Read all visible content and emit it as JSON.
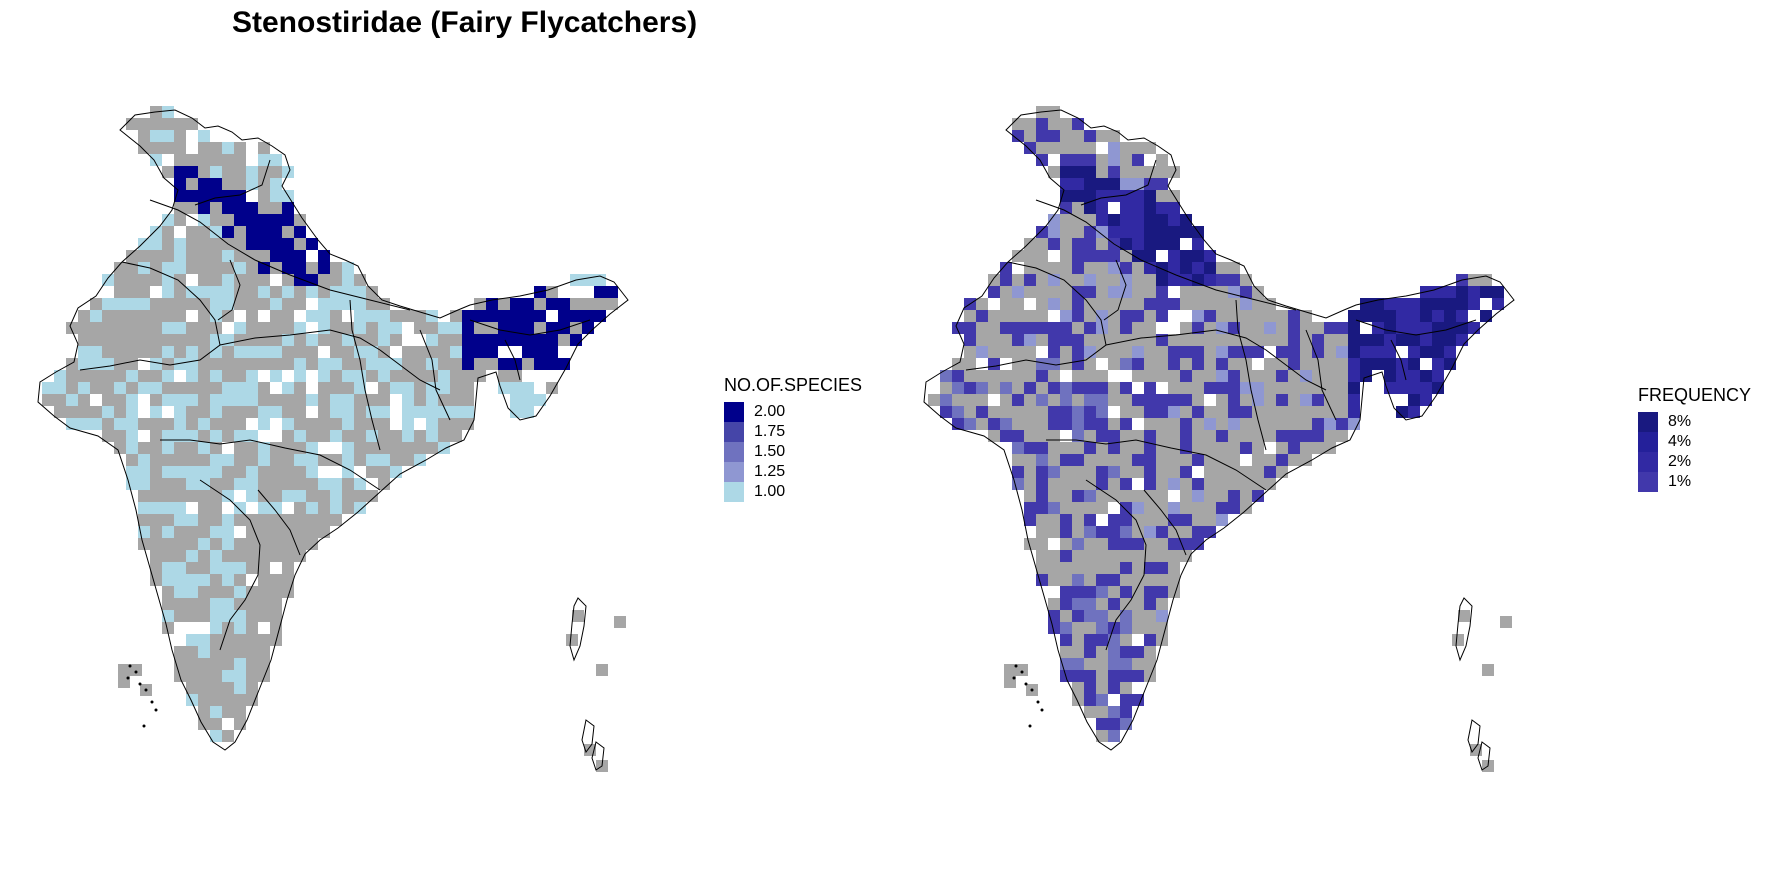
{
  "title": "Stenostiridae (Fairy Flycatchers)",
  "maps": {
    "species": {
      "legend": {
        "title": "NO.OF.SPECIES",
        "items": [
          {
            "label": "2.00",
            "color": "#00008b"
          },
          {
            "label": "1.75",
            "color": "#4545a8"
          },
          {
            "label": "1.50",
            "color": "#6f72bf"
          },
          {
            "label": "1.25",
            "color": "#8f97d2"
          },
          {
            "label": "1.00",
            "color": "#add8e6"
          }
        ]
      }
    },
    "frequency": {
      "legend": {
        "title": "FREQUENCY",
        "items": [
          {
            "label": "8%",
            "color": "#191980"
          },
          {
            "label": "4%",
            "color": "#24209a"
          },
          {
            "label": "2%",
            "color": "#3129a3"
          },
          {
            "label": "1%",
            "color": "#4138ab"
          }
        ]
      }
    }
  },
  "colors": {
    "no_data": "#a6a6a6",
    "border": "#000000",
    "background": "#ffffff"
  }
}
